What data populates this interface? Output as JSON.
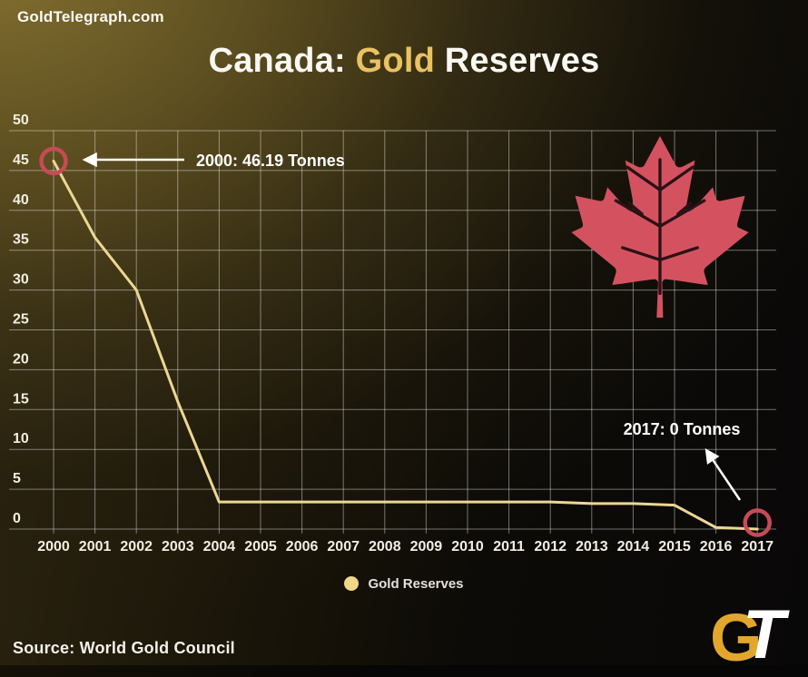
{
  "header": {
    "site": "GoldTelegraph.com"
  },
  "title": {
    "segments": [
      {
        "text": "Canada: ",
        "color": "#faf8f3"
      },
      {
        "text": "Gold",
        "color": "#e9c262"
      },
      {
        "text": " Reserves",
        "color": "#faf8f3"
      }
    ]
  },
  "chart_data": {
    "type": "line",
    "title": "Canada: Gold Reserves",
    "x": [
      2000,
      2001,
      2002,
      2003,
      2004,
      2005,
      2006,
      2007,
      2008,
      2009,
      2010,
      2011,
      2012,
      2013,
      2014,
      2015,
      2016,
      2017
    ],
    "series": [
      {
        "name": "Gold Reserves",
        "color": "#ecd794",
        "values": [
          46.19,
          36.6,
          30,
          16,
          3.4,
          3.4,
          3.4,
          3.4,
          3.4,
          3.4,
          3.4,
          3.4,
          3.4,
          3.2,
          3.2,
          3.0,
          0.2,
          0
        ]
      }
    ],
    "ylim": [
      0,
      50
    ],
    "y_ticks": [
      0,
      5,
      10,
      15,
      20,
      25,
      30,
      35,
      40,
      45,
      50
    ],
    "grid": true,
    "annotations": [
      {
        "text": "2000: 46.19 Tonnes",
        "year": 2000,
        "value": 46.19
      },
      {
        "text": "2017: 0 Tonnes",
        "year": 2017,
        "value": 0
      }
    ],
    "marker_color": "#c64b55",
    "tick_color": "#f2eee1",
    "gridline_color": "rgba(255,255,255,0.42)"
  },
  "legend": {
    "items": [
      {
        "label": "Gold Reserves",
        "color": "#f2d687"
      }
    ]
  },
  "leaf": {
    "name": "maple-leaf",
    "color": "#d4525f",
    "vein_color": "#2a1216"
  },
  "source": {
    "text": "Source: World Gold Council"
  },
  "logo": {
    "g": "G",
    "t": "T"
  }
}
